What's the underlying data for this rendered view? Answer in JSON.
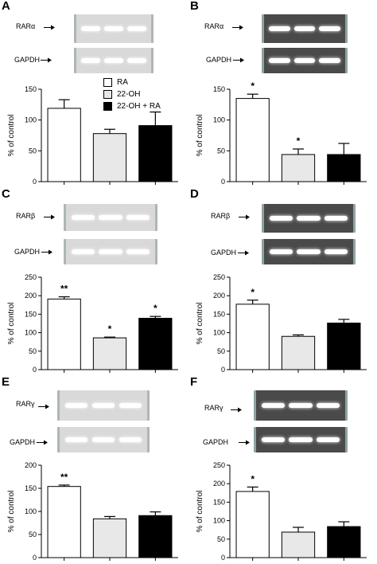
{
  "legend": {
    "items": [
      {
        "label": "RA",
        "color": "#ffffff"
      },
      {
        "label": "22-OH",
        "color": "#e8e8e8"
      },
      {
        "label": "22-OH + RA",
        "color": "#000000"
      }
    ]
  },
  "chart_data": [
    {
      "panel": "A",
      "type": "bar",
      "gene_label": "RARα",
      "ref_label": "GAPDH",
      "categories": [
        "RA",
        "22-OH",
        "22-OH + RA"
      ],
      "values": [
        119,
        78,
        91
      ],
      "errors": [
        14,
        7,
        22
      ],
      "significance": [
        "",
        "",
        ""
      ],
      "ylabel": "% of control",
      "ylim": [
        0,
        150
      ],
      "yticks": [
        0,
        50,
        100,
        150
      ],
      "gel_bg": "light"
    },
    {
      "panel": "B",
      "type": "bar",
      "gene_label": "RARα",
      "ref_label": "GAPDH",
      "categories": [
        "RA",
        "22-OH",
        "22-OH + RA"
      ],
      "values": [
        135,
        44,
        44
      ],
      "errors": [
        7,
        9,
        18
      ],
      "significance": [
        "*",
        "*",
        ""
      ],
      "ylabel": "% of control",
      "ylim": [
        0,
        150
      ],
      "yticks": [
        0,
        50,
        100,
        150
      ],
      "gel_bg": "dark"
    },
    {
      "panel": "C",
      "type": "bar",
      "gene_label": "RARβ",
      "ref_label": "GAPDH",
      "categories": [
        "RA",
        "22-OH",
        "22-OH + RA"
      ],
      "values": [
        191,
        86,
        139
      ],
      "errors": [
        6,
        2,
        5
      ],
      "significance": [
        "**",
        "*",
        "*"
      ],
      "ylabel": "% of control",
      "ylim": [
        0,
        250
      ],
      "yticks": [
        0,
        50,
        100,
        150,
        200,
        250
      ],
      "gel_bg": "light"
    },
    {
      "panel": "D",
      "type": "bar",
      "gene_label": "RARβ",
      "ref_label": "GAPDH",
      "categories": [
        "RA",
        "22-OH",
        "22-OH + RA"
      ],
      "values": [
        177,
        90,
        126
      ],
      "errors": [
        11,
        4,
        10
      ],
      "significance": [
        "*",
        "",
        ""
      ],
      "ylabel": "% of control",
      "ylim": [
        0,
        250
      ],
      "yticks": [
        0,
        50,
        100,
        150,
        200,
        250
      ],
      "gel_bg": "dark"
    },
    {
      "panel": "E",
      "type": "bar",
      "gene_label": "RARγ",
      "ref_label": "GAPDH",
      "categories": [
        "RA",
        "22-OH",
        "22-OH + RA"
      ],
      "values": [
        154,
        84,
        91
      ],
      "errors": [
        3,
        5,
        8
      ],
      "significance": [
        "**",
        "",
        ""
      ],
      "ylabel": "% of control",
      "ylim": [
        0,
        200
      ],
      "yticks": [
        0,
        50,
        100,
        150,
        200
      ],
      "gel_bg": "light"
    },
    {
      "panel": "F",
      "type": "bar",
      "gene_label": "RARγ",
      "ref_label": "GAPDH",
      "categories": [
        "RA",
        "22-OH",
        "22-OH + RA"
      ],
      "values": [
        179,
        69,
        84
      ],
      "errors": [
        12,
        13,
        13
      ],
      "significance": [
        "*",
        "",
        ""
      ],
      "ylabel": "% of control",
      "ylim": [
        0,
        250
      ],
      "yticks": [
        0,
        50,
        100,
        150,
        200,
        250
      ],
      "gel_bg": "dark"
    }
  ]
}
